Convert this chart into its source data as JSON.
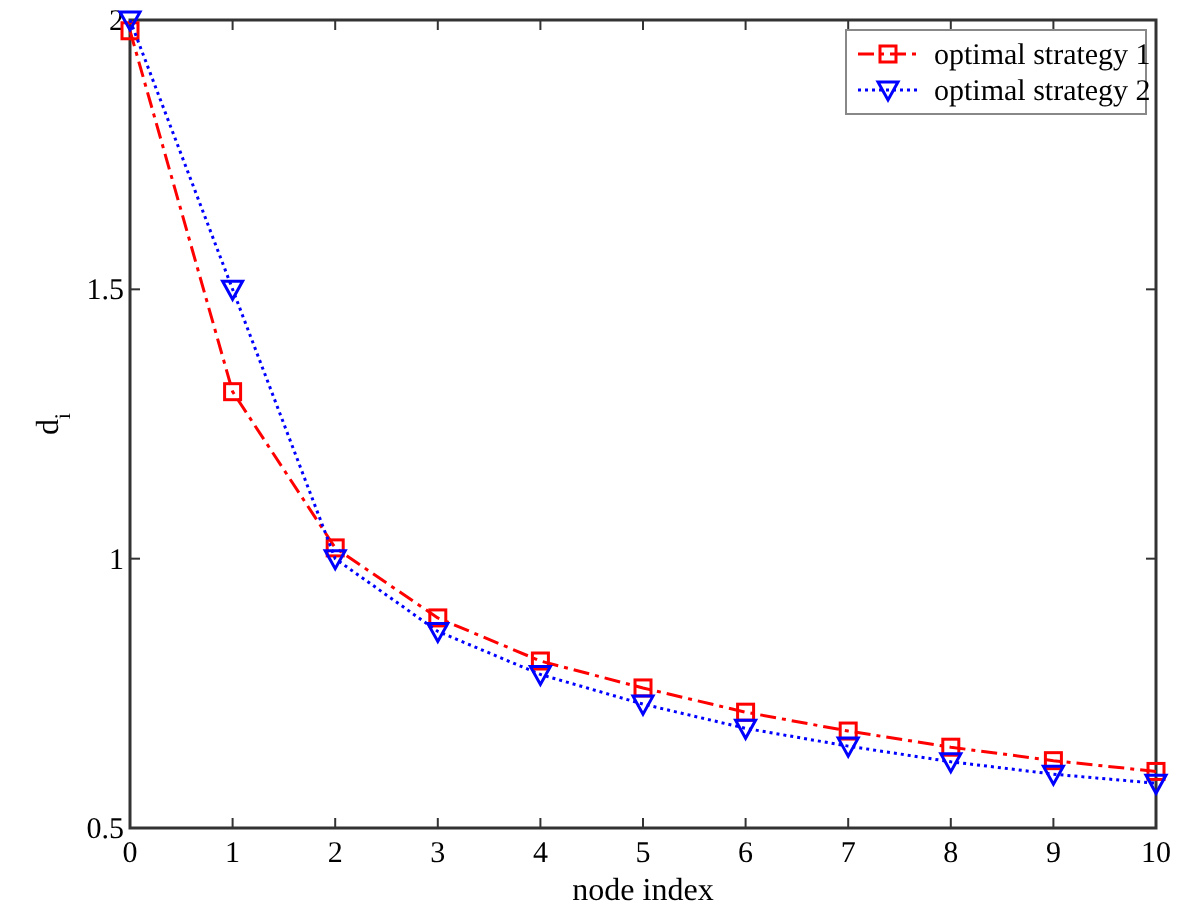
{
  "chart_data": {
    "type": "line",
    "xlabel": "node index",
    "ylabel": "d$_{i}$",
    "x": [
      0,
      1,
      2,
      3,
      4,
      5,
      6,
      7,
      8,
      9,
      10
    ],
    "series": [
      {
        "name": "optimal strategy 1",
        "color": "#ff0000",
        "marker": "square",
        "line_style": "dashed",
        "values": [
          1.98,
          1.31,
          1.02,
          0.89,
          0.81,
          0.76,
          0.715,
          0.68,
          0.65,
          0.625,
          0.605
        ]
      },
      {
        "name": "optimal strategy 2",
        "color": "#0000ff",
        "marker": "triangle",
        "line_style": "dotted",
        "values": [
          2.0,
          1.5,
          1.0,
          0.865,
          0.785,
          0.73,
          0.685,
          0.652,
          0.623,
          0.6,
          0.583
        ]
      }
    ],
    "xlim": [
      0,
      10
    ],
    "xticks": [
      0,
      1,
      2,
      3,
      4,
      5,
      6,
      7,
      8,
      9,
      10
    ],
    "ylim": [
      0.5,
      2
    ],
    "yticks": [
      0.5,
      1,
      1.5,
      2
    ],
    "grid": false,
    "legend": "top right"
  }
}
